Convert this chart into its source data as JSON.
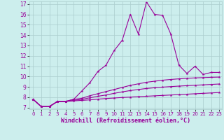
{
  "x_values": [
    0,
    1,
    2,
    3,
    4,
    5,
    6,
    7,
    8,
    9,
    10,
    11,
    12,
    13,
    14,
    15,
    16,
    17,
    18,
    19,
    20,
    21,
    22,
    23
  ],
  "line1": [
    7.8,
    7.1,
    7.1,
    7.6,
    7.6,
    7.8,
    8.6,
    9.4,
    10.5,
    11.1,
    12.5,
    13.5,
    16.0,
    14.1,
    17.2,
    16.0,
    15.9,
    14.1,
    11.1,
    10.3,
    11.0,
    10.2,
    10.4,
    10.4
  ],
  "line2": [
    7.8,
    7.1,
    7.1,
    7.6,
    7.6,
    7.8,
    7.9,
    8.15,
    8.35,
    8.55,
    8.75,
    8.95,
    9.15,
    9.3,
    9.45,
    9.55,
    9.65,
    9.72,
    9.78,
    9.83,
    9.87,
    9.9,
    9.93,
    9.95
  ],
  "line3": [
    7.8,
    7.1,
    7.1,
    7.6,
    7.6,
    7.7,
    7.8,
    7.95,
    8.1,
    8.22,
    8.38,
    8.52,
    8.65,
    8.75,
    8.85,
    8.92,
    8.98,
    9.03,
    9.08,
    9.12,
    9.16,
    9.2,
    9.24,
    9.28
  ],
  "line4": [
    7.8,
    7.1,
    7.1,
    7.6,
    7.6,
    7.65,
    7.7,
    7.75,
    7.82,
    7.88,
    7.93,
    7.98,
    8.02,
    8.06,
    8.1,
    8.14,
    8.18,
    8.22,
    8.26,
    8.3,
    8.34,
    8.38,
    8.42,
    8.46
  ],
  "color": "#990099",
  "bg_color": "#cceeed",
  "grid_color": "#aacccc",
  "ylim_min": 7,
  "ylim_max": 17,
  "xlim_min": 0,
  "xlim_max": 23,
  "xlabel": "Windchill (Refroidissement éolien,°C)",
  "yticks": [
    7,
    8,
    9,
    10,
    11,
    12,
    13,
    14,
    15,
    16,
    17
  ],
  "xticks": [
    0,
    1,
    2,
    3,
    4,
    5,
    6,
    7,
    8,
    9,
    10,
    11,
    12,
    13,
    14,
    15,
    16,
    17,
    18,
    19,
    20,
    21,
    22,
    23
  ],
  "tick_fontsize": 5.5,
  "xlabel_fontsize": 6.0,
  "linewidth": 0.8,
  "markersize": 3.0
}
